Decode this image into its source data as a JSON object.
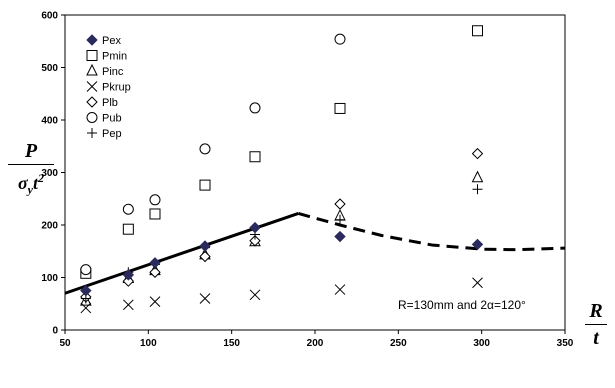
{
  "chart_data": {
    "type": "scatter",
    "xlim": [
      50,
      350
    ],
    "ylim": [
      0,
      600
    ],
    "x_ticks": [
      "50",
      "100",
      "150",
      "200",
      "250",
      "300",
      "350"
    ],
    "y_ticks": [
      "0",
      "100",
      "200",
      "300",
      "400",
      "500",
      "600"
    ],
    "x": [
      62.5,
      88,
      104,
      134,
      164,
      215,
      297.5
    ],
    "series": [
      {
        "name": "Pex",
        "marker": "filled-diamond",
        "color": "#2a2a5c",
        "values": [
          75,
          105,
          128,
          160,
          195,
          178,
          163
        ]
      },
      {
        "name": "Pmin",
        "marker": "square",
        "color": "#000000",
        "values": [
          108,
          192,
          221,
          276,
          330,
          422,
          570
        ]
      },
      {
        "name": "Pinc",
        "marker": "triangle",
        "color": "#000000",
        "values": [
          55,
          98,
          113,
          143,
          168,
          217,
          290
        ]
      },
      {
        "name": "Pkrup",
        "marker": "x",
        "color": "#000000",
        "values": [
          42,
          48,
          54,
          60,
          67,
          77,
          90
        ]
      },
      {
        "name": "Plb",
        "marker": "diamond",
        "color": "#000000",
        "values": [
          63,
          93,
          110,
          140,
          170,
          240,
          336
        ]
      },
      {
        "name": "Pub",
        "marker": "circle",
        "color": "#000000",
        "values": [
          115,
          230,
          248,
          345,
          423,
          554,
          null
        ]
      },
      {
        "name": "Pep",
        "marker": "plus",
        "color": "#000000",
        "values": [
          60,
          110,
          125,
          157,
          182,
          210,
          268
        ]
      }
    ],
    "trend_solid": {
      "x": [
        50,
        190
      ],
      "y": [
        70,
        222
      ]
    },
    "trend_dashed": {
      "x": [
        190,
        215,
        240,
        270,
        300,
        320,
        350
      ],
      "y": [
        222,
        200,
        180,
        162,
        154,
        153,
        156
      ]
    },
    "y_label": {
      "numerator": "P",
      "denominator_base": "σ",
      "denominator_sub": "y",
      "denominator_t": "t",
      "denominator_sup": "2"
    },
    "x_label": {
      "numerator": "R",
      "denominator": "t"
    },
    "annotation": "R=130mm and 2α=120°",
    "legend_position": "top-left",
    "grid": false
  }
}
